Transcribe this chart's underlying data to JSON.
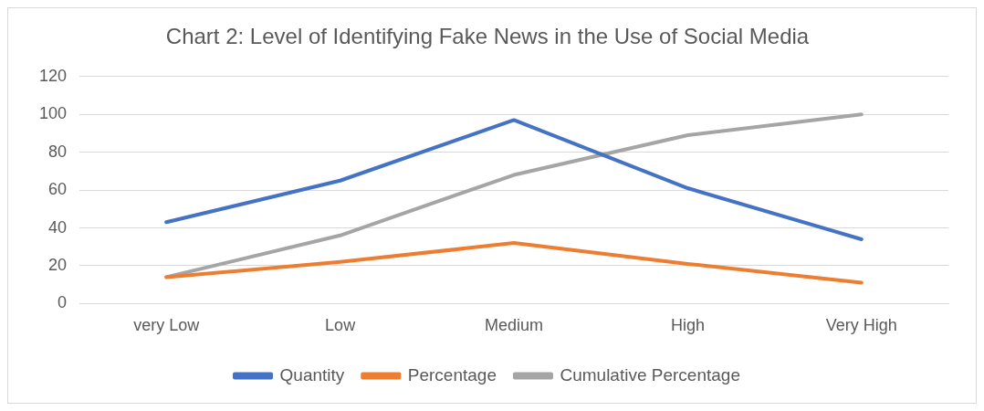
{
  "chart_data": {
    "type": "line",
    "title": "Chart 2: Level of Identifying Fake News in the Use of Social Media",
    "categories": [
      "very Low",
      "Low",
      "Medium",
      "High",
      "Very High"
    ],
    "series": [
      {
        "name": "Quantity",
        "color": "#4472c4",
        "values": [
          43,
          65,
          97,
          61,
          34
        ]
      },
      {
        "name": "Percentage",
        "color": "#ed7d31",
        "values": [
          14,
          22,
          32,
          21,
          11
        ]
      },
      {
        "name": "Cumulative Percentage",
        "color": "#a5a5a5",
        "values": [
          14,
          36,
          68,
          89,
          100
        ]
      }
    ],
    "ylim": [
      0,
      120
    ],
    "yticks": [
      0,
      20,
      40,
      60,
      80,
      100,
      120
    ],
    "grid": "y",
    "legend": "bottom",
    "marker": "none",
    "line_style": "solid"
  }
}
